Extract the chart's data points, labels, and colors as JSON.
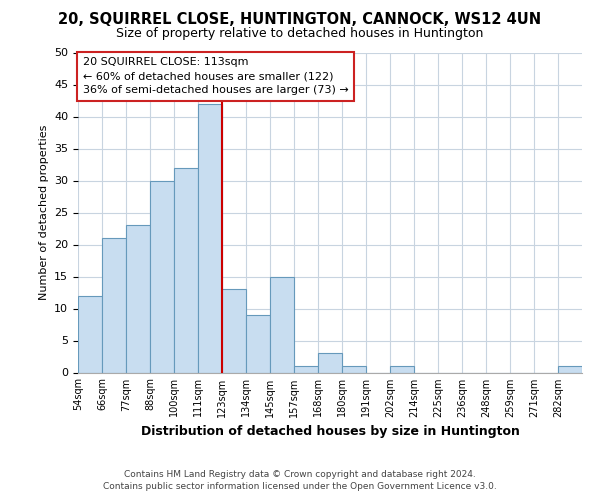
{
  "title": "20, SQUIRREL CLOSE, HUNTINGTON, CANNOCK, WS12 4UN",
  "subtitle": "Size of property relative to detached houses in Huntington",
  "xlabel": "Distribution of detached houses by size in Huntington",
  "ylabel": "Number of detached properties",
  "bar_color": "#c8ddf0",
  "bar_edge_color": "#6699bb",
  "bin_labels": [
    "54sqm",
    "66sqm",
    "77sqm",
    "88sqm",
    "100sqm",
    "111sqm",
    "123sqm",
    "134sqm",
    "145sqm",
    "157sqm",
    "168sqm",
    "180sqm",
    "191sqm",
    "202sqm",
    "214sqm",
    "225sqm",
    "236sqm",
    "248sqm",
    "259sqm",
    "271sqm",
    "282sqm"
  ],
  "bar_heights": [
    12,
    21,
    23,
    30,
    32,
    42,
    13,
    9,
    15,
    1,
    3,
    1,
    0,
    1,
    0,
    0,
    0,
    0,
    0,
    0,
    1
  ],
  "property_line_color": "#cc0000",
  "property_line_bin_index": 6,
  "annotation_line1": "20 SQUIRREL CLOSE: 113sqm",
  "annotation_line2": "← 60% of detached houses are smaller (122)",
  "annotation_line3": "36% of semi-detached houses are larger (73) →",
  "ylim": [
    0,
    50
  ],
  "yticks": [
    0,
    5,
    10,
    15,
    20,
    25,
    30,
    35,
    40,
    45,
    50
  ],
  "footer_line1": "Contains HM Land Registry data © Crown copyright and database right 2024.",
  "footer_line2": "Contains public sector information licensed under the Open Government Licence v3.0.",
  "background_color": "#ffffff",
  "grid_color": "#c8d4e0"
}
